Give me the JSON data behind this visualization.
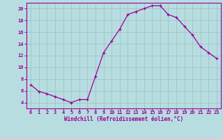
{
  "x": [
    0,
    1,
    2,
    3,
    4,
    5,
    6,
    7,
    8,
    9,
    10,
    11,
    12,
    13,
    14,
    15,
    16,
    17,
    18,
    19,
    20,
    21,
    22,
    23
  ],
  "y": [
    7.0,
    5.9,
    5.5,
    5.0,
    4.5,
    4.0,
    4.5,
    4.5,
    8.5,
    12.5,
    14.5,
    16.5,
    19.0,
    19.5,
    20.0,
    20.5,
    20.5,
    19.0,
    18.5,
    17.0,
    15.5,
    13.5,
    12.5,
    11.5
  ],
  "line_color": "#990099",
  "marker": "+",
  "bg_color": "#b8dde0",
  "grid_color": "#9fc8cb",
  "xlabel": "Windchill (Refroidissement éolien,°C)",
  "xlabel_color": "#990099",
  "tick_color": "#990099",
  "ylim": [
    3,
    21
  ],
  "xlim": [
    -0.5,
    23.5
  ],
  "yticks": [
    4,
    6,
    8,
    10,
    12,
    14,
    16,
    18,
    20
  ],
  "xticks": [
    0,
    1,
    2,
    3,
    4,
    5,
    6,
    7,
    8,
    9,
    10,
    11,
    12,
    13,
    14,
    15,
    16,
    17,
    18,
    19,
    20,
    21,
    22,
    23
  ],
  "spine_color": "#990099",
  "tick_fontsize": 5.0,
  "ylabel_fontsize": 5.5,
  "xlabel_fontsize": 5.5
}
